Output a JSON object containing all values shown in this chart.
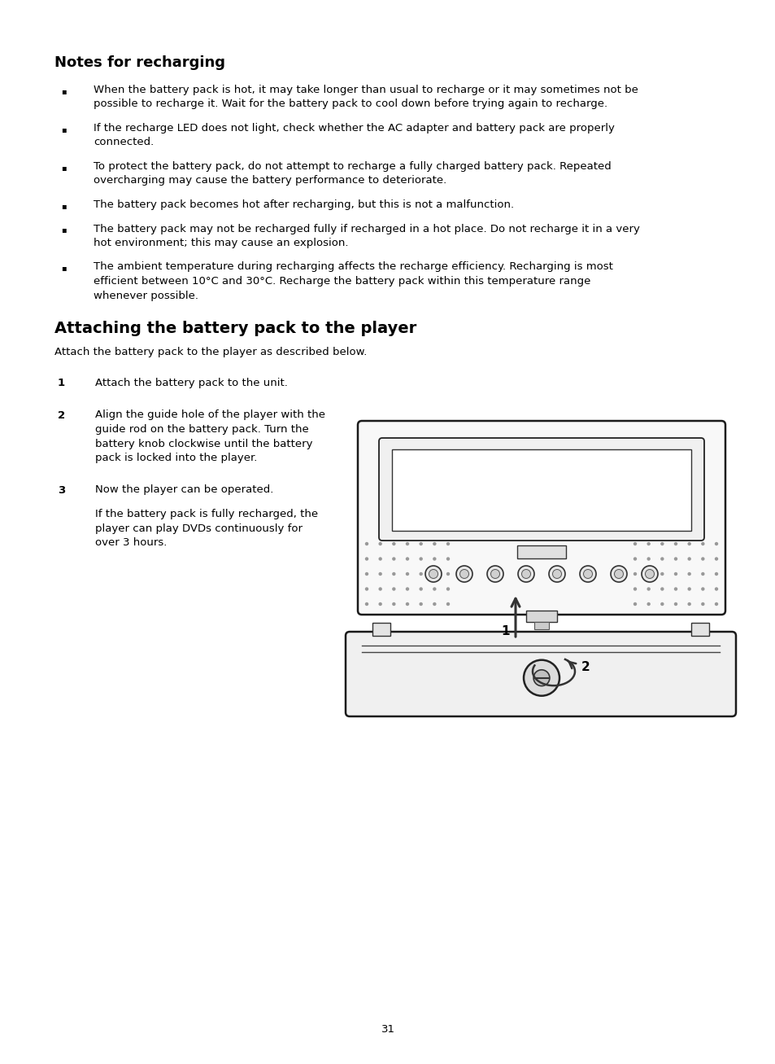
{
  "bg_color": "#ffffff",
  "text_color": "#000000",
  "page_number": "31",
  "section1_title": "Notes for recharging",
  "bullet_points": [
    "When the battery pack is hot, it may take longer than usual to recharge or it may sometimes not be\npossible to recharge it. Wait for the battery pack to cool down before trying again to recharge.",
    "If the recharge LED does not light, check whether the AC adapter and battery pack are properly\nconnected.",
    "To protect the battery pack, do not attempt to recharge a fully charged battery pack. Repeated\novercharging may cause the battery performance to deteriorate.",
    "The battery pack becomes hot after recharging, but this is not a malfunction.",
    "The battery pack may not be recharged fully if recharged in a hot place. Do not recharge it in a very\nhot environment; this may cause an explosion.",
    "The ambient temperature during recharging affects the recharge efficiency. Recharging is most\nefficient between 10°C and 30°C. Recharge the battery pack within this temperature range\nwhenever possible."
  ],
  "section2_title": "Attaching the battery pack to the player",
  "section2_intro": "Attach the battery pack to the player as described below.",
  "steps": [
    {
      "num": "1",
      "text": "Attach the battery pack to the unit."
    },
    {
      "num": "2",
      "text": "Align the guide hole of the player with the\nguide rod on the battery pack. Turn the\nbattery knob clockwise until the battery\npack is locked into the player."
    },
    {
      "num": "3",
      "text": "Now the player can be operated.\n\nIf the battery pack is fully recharged, the\nplayer can play DVDs continuously for\nover 3 hours."
    }
  ]
}
